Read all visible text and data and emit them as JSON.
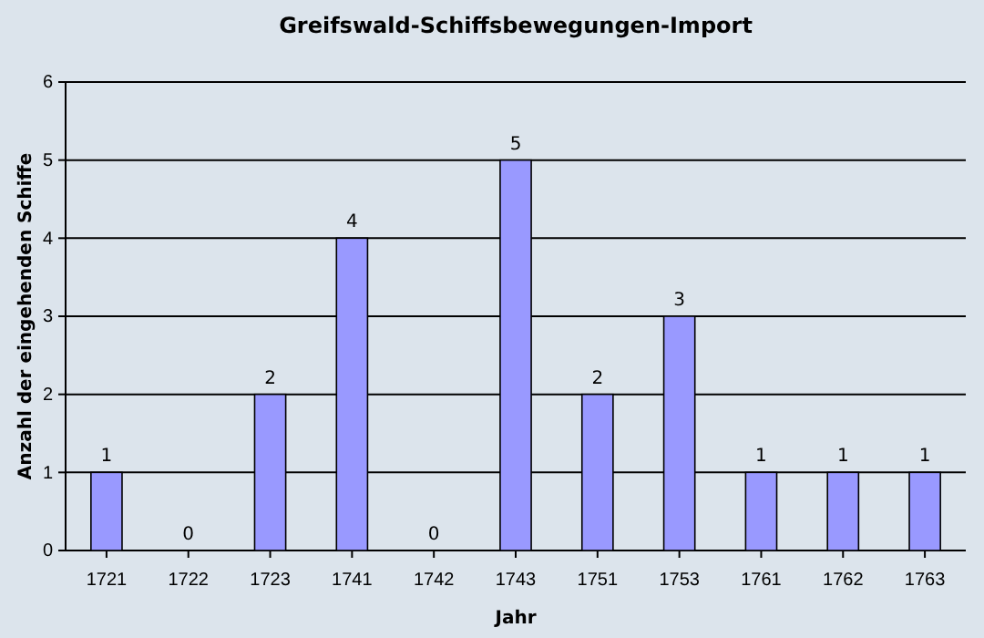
{
  "chart_data": {
    "type": "bar",
    "title": "Greifswald-Schiffsbewegungen-Import",
    "xlabel": "Jahr",
    "ylabel": "Anzahl der eingehenden Schiffe",
    "categories": [
      "1721",
      "1722",
      "1723",
      "1741",
      "1742",
      "1743",
      "1751",
      "1753",
      "1761",
      "1762",
      "1763"
    ],
    "values": [
      1,
      0,
      2,
      4,
      0,
      5,
      2,
      3,
      1,
      1,
      1
    ],
    "color": "#9999ff",
    "ylim": [
      0,
      6
    ],
    "yticks": [
      0,
      1,
      2,
      3,
      4,
      5,
      6
    ],
    "grid": "y",
    "data_labels": true
  }
}
